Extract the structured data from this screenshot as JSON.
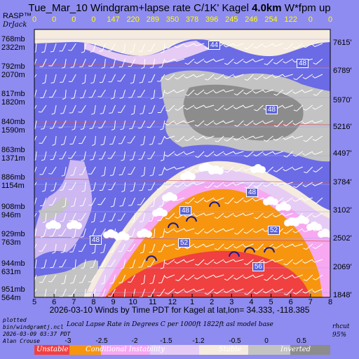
{
  "title": {
    "prefix": "Tue_Mar_10 Windgram+lapse rate C/1K'  Kagel ",
    "height": "4.0km",
    "suffix": "  W*fpm up"
  },
  "rasp": {
    "name": "RASP™",
    "author": "DrJack"
  },
  "wstar_values": [
    "0",
    "0",
    "0",
    "0",
    "147",
    "220",
    "289",
    "350",
    "378",
    "396",
    "245",
    "246",
    "254",
    "122",
    "0",
    "0"
  ],
  "pressure_labels": [
    {
      "mb": "768mb",
      "alt": "2322m"
    },
    {
      "mb": "792mb",
      "alt": "2070m"
    },
    {
      "mb": "817mb",
      "alt": "1820m"
    },
    {
      "mb": "840mb",
      "alt": "1590m"
    },
    {
      "mb": "863mb",
      "alt": "1371m"
    },
    {
      "mb": "886mb",
      "alt": "1154m"
    },
    {
      "mb": "908mb",
      "alt": "946m"
    },
    {
      "mb": "929mb",
      "alt": "763m"
    },
    {
      "mb": "944mb",
      "alt": "631m"
    },
    {
      "mb": "951mb",
      "alt": "564m"
    }
  ],
  "altitude_ft": [
    "7615'",
    "6789'",
    "5970'",
    "5216'",
    "4497'",
    "3784'",
    "3102'",
    "2502'",
    "2069'",
    "1848'"
  ],
  "x_ticks": [
    "5",
    "6",
    "7",
    "8",
    "9",
    "10",
    "11",
    "12",
    "1",
    "2",
    "3",
    "4",
    "5",
    "6",
    "7",
    "8"
  ],
  "subtitle": "2026-03-10 Winds by Time PDT for Kagel at lat,lon= 34.333, -118.385",
  "footer_left": [
    "plotted",
    "bin/windgramtj.ncl",
    "2026-03-09 03:37 PDT",
    "Alan Crouse"
  ],
  "footer_center": "Local Lapse Rate in Degrees C per 1000ft   1822ft asl model base",
  "footer_right": [
    "rhcut",
    "95%"
  ],
  "scale_values": [
    "-3",
    "-2.5",
    "-2",
    "-1.5",
    "-1.2",
    "-0.5",
    "0",
    "0.5"
  ],
  "legend": {
    "unstable": "Unstable",
    "conditional": "Conditional Instability",
    "stable": "Stable",
    "inverted": "Inverted"
  },
  "contour_labels": [
    "44",
    "48",
    "48",
    "48",
    "48",
    "48",
    "52",
    "52",
    "56"
  ],
  "colors": {
    "background": "#8e8cf0",
    "deep_blue": "#6b6be6",
    "unstable_red": "#f04040",
    "orange": "#f7950f",
    "pink": "#f7a8f0",
    "lavender": "#e6ccf5",
    "cream": "#f5ebde",
    "light_gray": "#c3c3c3",
    "dark_gray": "#8c8c8c",
    "title_yellow": "#ffff00"
  },
  "chart_data": {
    "type": "heatmap",
    "x_label": "Time PDT",
    "x": [
      "5",
      "6",
      "7",
      "8",
      "9",
      "10",
      "11",
      "12",
      "1",
      "2",
      "3",
      "4",
      "5",
      "6",
      "7",
      "8"
    ],
    "y_levels_mb": [
      768,
      792,
      817,
      840,
      863,
      886,
      908,
      929,
      944,
      951
    ],
    "w_star_fpm": [
      0,
      0,
      0,
      0,
      147,
      220,
      289,
      350,
      378,
      396,
      245,
      246,
      254,
      122,
      0,
      0
    ],
    "lapse_rate_scale": [
      -3,
      -2.5,
      -2,
      -1.5,
      -1.2,
      -0.5,
      0,
      0.5
    ],
    "categories": [
      "Unstable",
      "Conditional Instability",
      "Stable",
      "Inverted"
    ]
  }
}
